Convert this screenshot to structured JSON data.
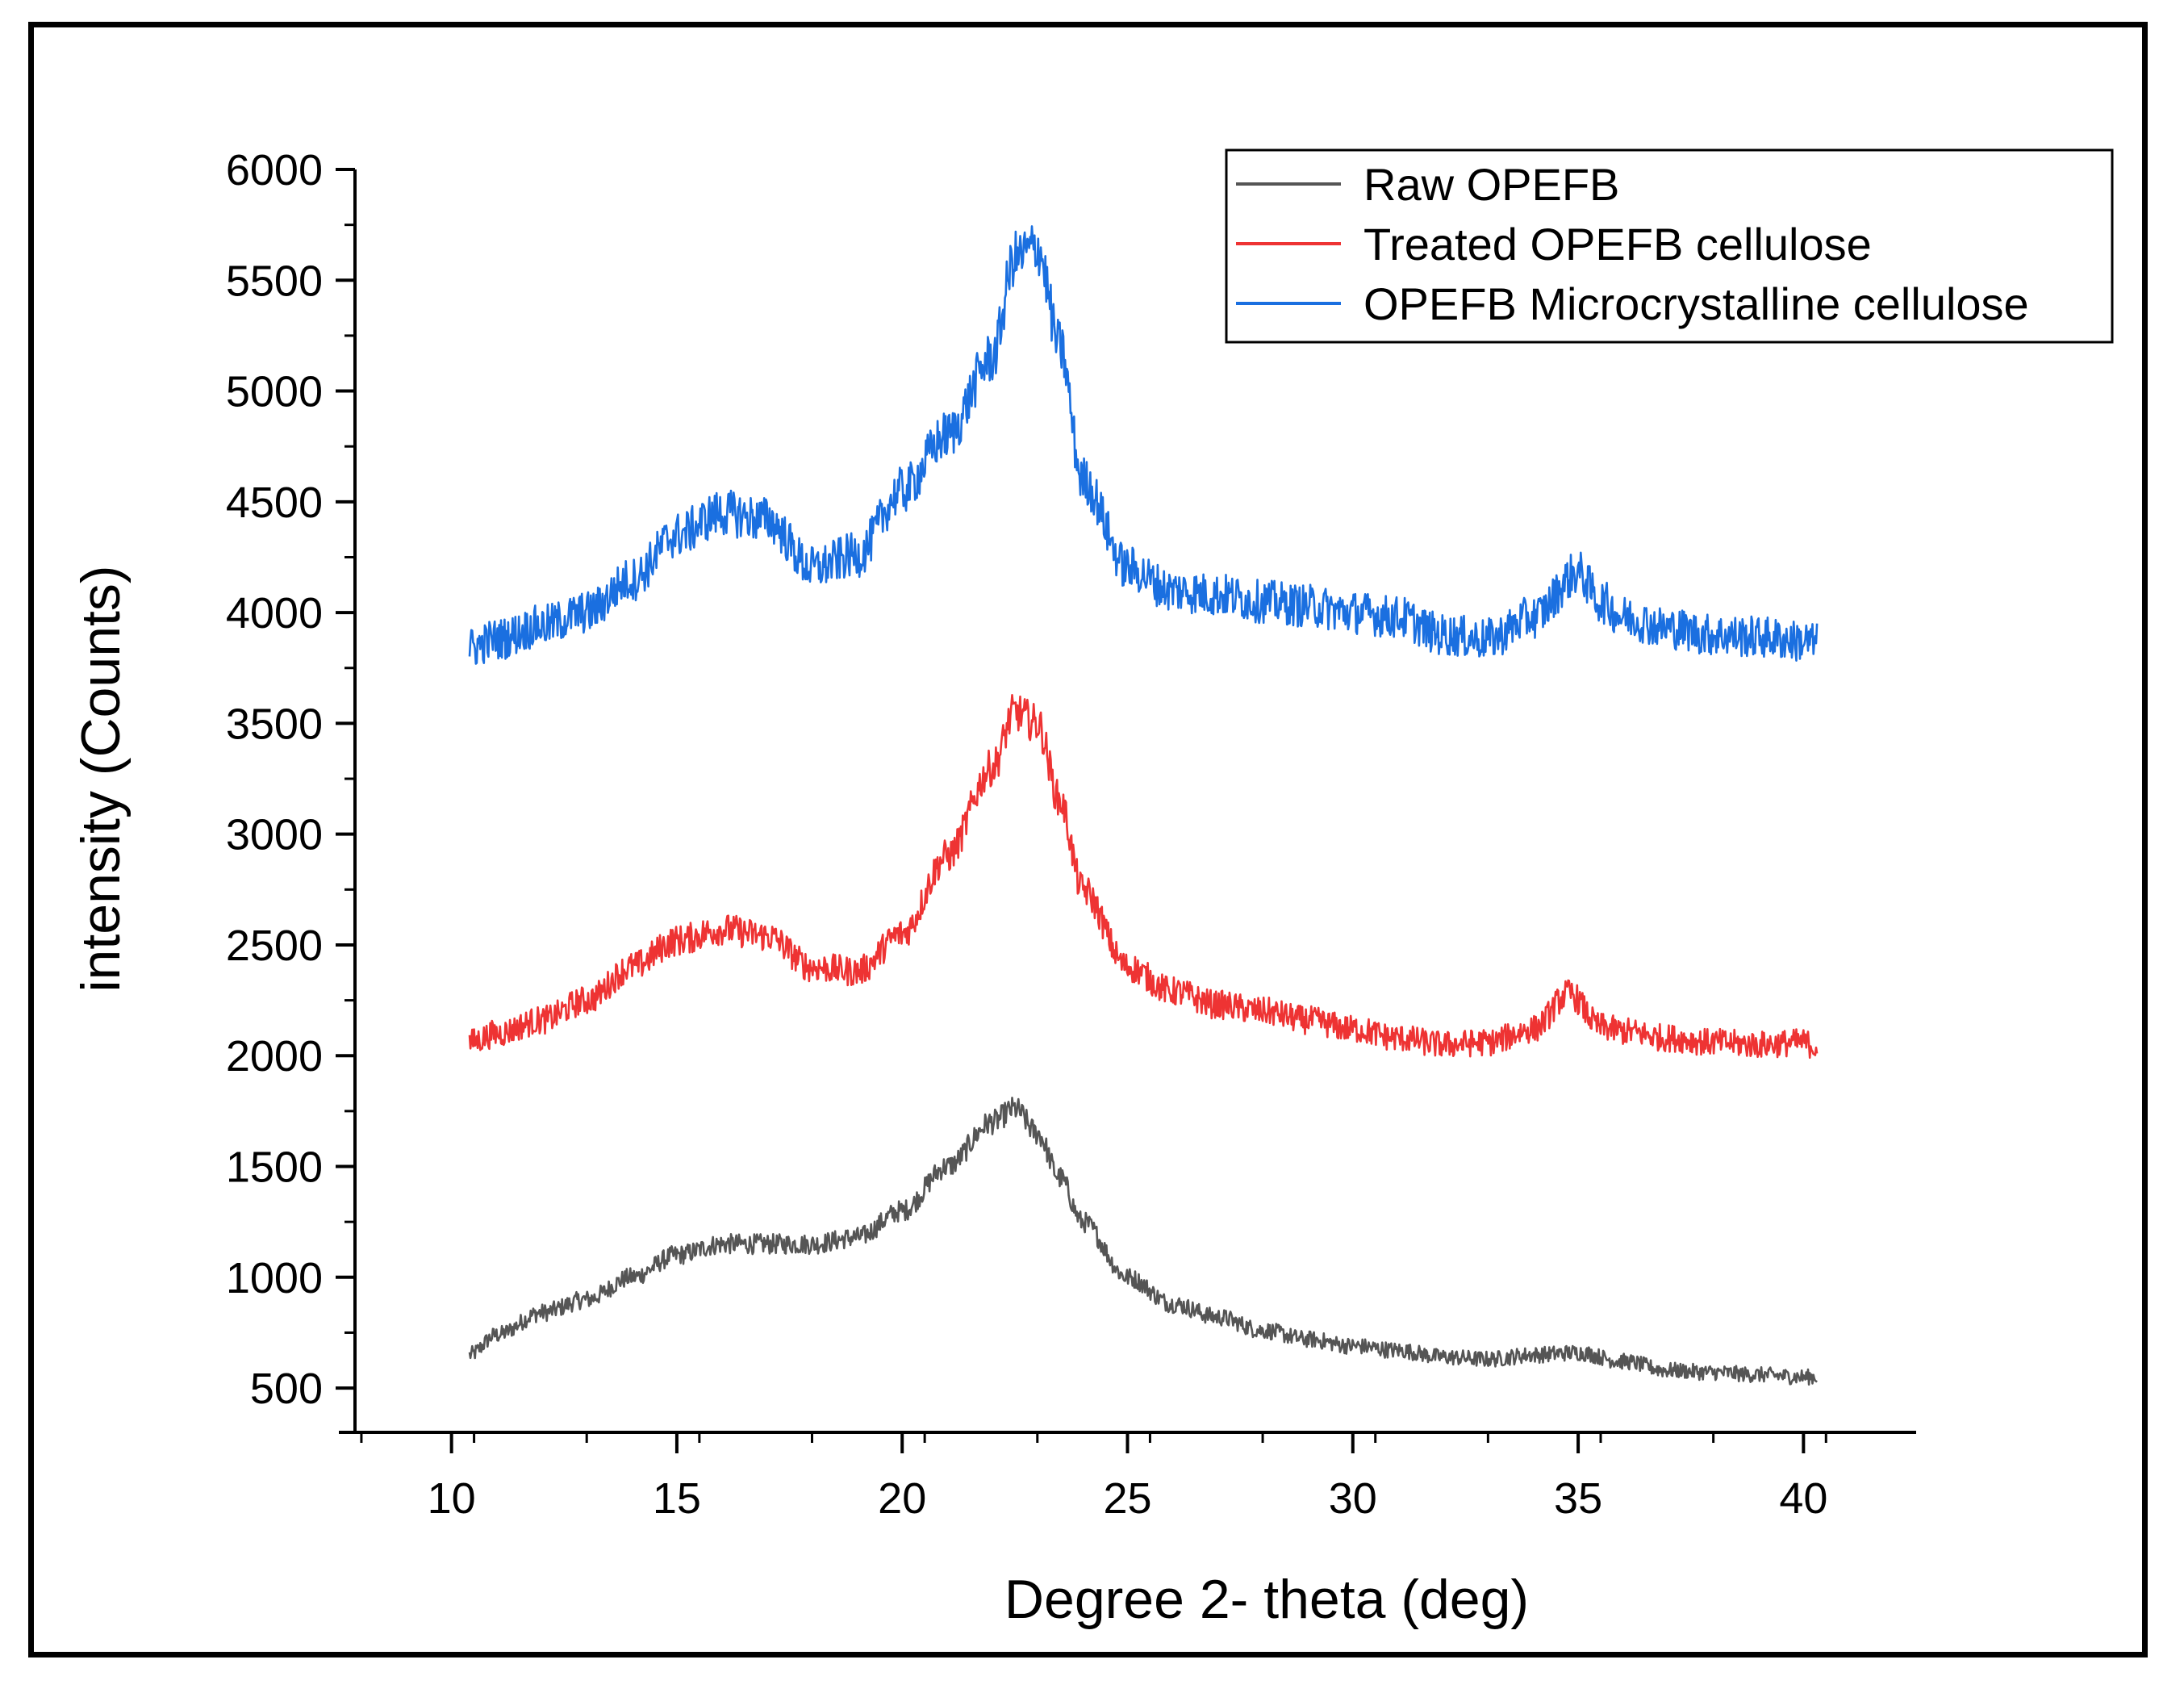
{
  "chart_data": {
    "type": "line",
    "title": "",
    "xlabel": "Degree 2- theta (deg)",
    "ylabel": "intensity (Counts)",
    "xlim": [
      7.5,
      42.5
    ],
    "ylim": [
      300,
      6000
    ],
    "xticks": [
      "10",
      "15",
      "20",
      "25",
      "30",
      "35",
      "40"
    ],
    "yticks": [
      "500",
      "1000",
      "1500",
      "2000",
      "2500",
      "3000",
      "3500",
      "4000",
      "4500",
      "5000",
      "5500",
      "6000"
    ],
    "legend_position": "top-right",
    "series": [
      {
        "name": "Raw OPEFB",
        "color": "#555555",
        "x": [
          10.4,
          11,
          12,
          13,
          14,
          15,
          16,
          17,
          18,
          19,
          20,
          21,
          22,
          22.5,
          23,
          23.5,
          24,
          25,
          26,
          27,
          28,
          29,
          30,
          31,
          32,
          33,
          34,
          35,
          36,
          37,
          38,
          39,
          40,
          40.3
        ],
        "y": [
          650,
          740,
          840,
          900,
          1000,
          1100,
          1150,
          1150,
          1150,
          1180,
          1300,
          1500,
          1700,
          1760,
          1650,
          1450,
          1250,
          1000,
          880,
          820,
          760,
          720,
          690,
          670,
          640,
          630,
          650,
          660,
          620,
          580,
          570,
          560,
          550,
          550
        ]
      },
      {
        "name": "Treated OPEFB cellulose",
        "color": "#ee3333",
        "x": [
          10.4,
          11,
          12,
          13,
          14,
          15,
          16,
          17,
          18,
          19,
          20,
          21,
          22,
          22.5,
          23,
          23.5,
          24,
          25,
          26,
          27,
          28,
          29,
          30,
          31,
          32,
          33,
          34,
          34.8,
          35.5,
          36,
          37,
          38,
          39,
          40,
          40.3
        ],
        "y": [
          2060,
          2100,
          2160,
          2250,
          2400,
          2520,
          2570,
          2540,
          2400,
          2380,
          2550,
          2900,
          3300,
          3550,
          3500,
          3150,
          2750,
          2400,
          2290,
          2230,
          2200,
          2160,
          2120,
          2080,
          2050,
          2060,
          2120,
          2280,
          2130,
          2110,
          2080,
          2060,
          2050,
          2060,
          2040
        ]
      },
      {
        "name": "OPEFB Microcrystalline cellulose",
        "color": "#1a6fe0",
        "x": [
          10.4,
          11,
          12,
          13,
          14,
          15,
          16,
          17,
          18,
          19,
          20,
          21,
          22,
          22.5,
          23,
          23.5,
          24,
          25,
          26,
          27,
          28,
          29,
          30,
          31,
          32,
          33,
          34,
          35,
          35.5,
          36,
          37,
          38,
          39,
          40,
          40.3
        ],
        "y": [
          3840,
          3880,
          3940,
          4000,
          4150,
          4350,
          4450,
          4420,
          4200,
          4260,
          4550,
          4800,
          5150,
          5600,
          5650,
          5200,
          4600,
          4200,
          4100,
          4080,
          4050,
          4030,
          4000,
          3980,
          3900,
          3880,
          3980,
          4180,
          4050,
          3980,
          3930,
          3900,
          3890,
          3870,
          3860
        ]
      }
    ]
  }
}
